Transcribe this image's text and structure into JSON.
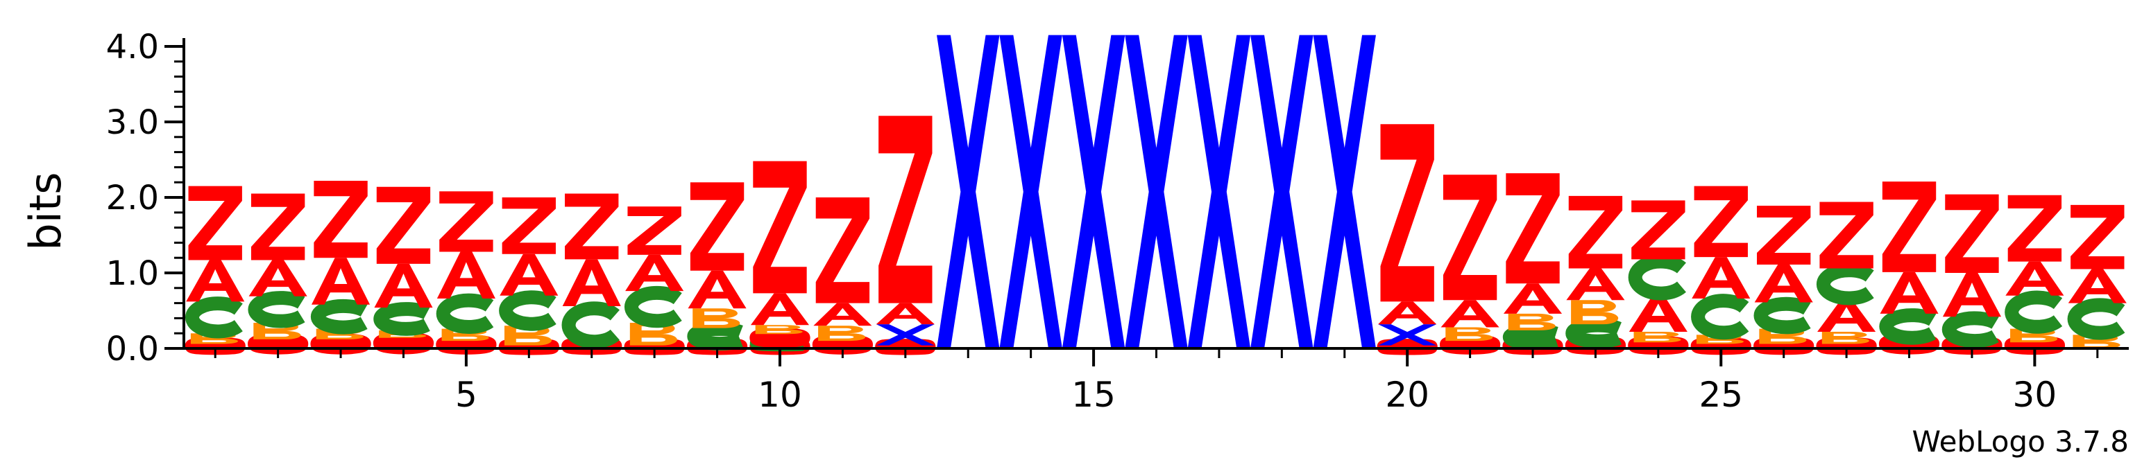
{
  "chart_data": {
    "type": "sequence-logo",
    "title": "",
    "ylabel": "bits",
    "xlabel": "",
    "ylim": [
      0,
      4.0
    ],
    "yticks": [
      "0.0",
      "1.0",
      "2.0",
      "3.0",
      "4.0"
    ],
    "xticks": [
      5,
      10,
      15,
      20,
      25,
      30
    ],
    "credit": "WebLogo 3.7.8",
    "letter_colors": {
      "Z": "#ff0000",
      "A": "#ff0000",
      "C": "#228b22",
      "B": "#ff8c00",
      "O": "#ff0000",
      "X": "#0000ff"
    },
    "positions": [
      {
        "pos": 1,
        "stack": [
          [
            "O",
            0.06
          ],
          [
            "B",
            0.14
          ],
          [
            "C",
            0.42
          ],
          [
            "A",
            0.55
          ],
          [
            "Z",
            0.98
          ]
        ]
      },
      {
        "pos": 2,
        "stack": [
          [
            "O",
            0.12
          ],
          [
            "B",
            0.22
          ],
          [
            "C",
            0.35
          ],
          [
            "A",
            0.48
          ],
          [
            "Z",
            0.88
          ]
        ]
      },
      {
        "pos": 3,
        "stack": [
          [
            "O",
            0.12
          ],
          [
            "B",
            0.14
          ],
          [
            "C",
            0.32
          ],
          [
            "A",
            0.62
          ],
          [
            "Z",
            1.02
          ]
        ]
      },
      {
        "pos": 4,
        "stack": [
          [
            "O",
            0.14
          ],
          [
            "B",
            0.1
          ],
          [
            "C",
            0.3
          ],
          [
            "A",
            0.58
          ],
          [
            "Z",
            1.02
          ]
        ]
      },
      {
        "pos": 5,
        "stack": [
          [
            "O",
            0.1
          ],
          [
            "B",
            0.16
          ],
          [
            "C",
            0.4
          ],
          [
            "A",
            0.62
          ],
          [
            "Z",
            0.8
          ]
        ]
      },
      {
        "pos": 6,
        "stack": [
          [
            "O",
            0.04
          ],
          [
            "B",
            0.26
          ],
          [
            "C",
            0.4
          ],
          [
            "A",
            0.55
          ],
          [
            "Z",
            0.75
          ]
        ]
      },
      {
        "pos": 7,
        "stack": [
          [
            "O",
            0.06
          ],
          [
            "C",
            0.5
          ],
          [
            "A",
            0.62
          ],
          [
            "Z",
            0.87
          ]
        ]
      },
      {
        "pos": 8,
        "stack": [
          [
            "O",
            0.04
          ],
          [
            "B",
            0.3
          ],
          [
            "C",
            0.42
          ],
          [
            "A",
            0.48
          ],
          [
            "Z",
            0.64
          ]
        ]
      },
      {
        "pos": 9,
        "stack": [
          [
            "O",
            0.05
          ],
          [
            "C",
            0.22
          ],
          [
            "B",
            0.26
          ],
          [
            "A",
            0.5
          ],
          [
            "Z",
            1.17
          ]
        ]
      },
      {
        "pos": 10,
        "stack": [
          [
            "O",
            0.05
          ],
          [
            "C",
            0.04
          ],
          [
            "O",
            0.1
          ],
          [
            "B",
            0.12
          ],
          [
            "A",
            0.42
          ],
          [
            "Z",
            1.75
          ]
        ]
      },
      {
        "pos": 11,
        "stack": [
          [
            "O",
            0.1
          ],
          [
            "B",
            0.2
          ],
          [
            "A",
            0.3
          ],
          [
            "Z",
            1.4
          ]
        ]
      },
      {
        "pos": 12,
        "stack": [
          [
            "O",
            0.04
          ],
          [
            "X",
            0.28
          ],
          [
            "A",
            0.28
          ],
          [
            "Z",
            2.48
          ]
        ]
      },
      {
        "pos": 13,
        "stack": [
          [
            "X",
            4.15
          ]
        ]
      },
      {
        "pos": 14,
        "stack": [
          [
            "X",
            4.15
          ]
        ]
      },
      {
        "pos": 15,
        "stack": [
          [
            "X",
            4.15
          ]
        ]
      },
      {
        "pos": 16,
        "stack": [
          [
            "X",
            4.15
          ]
        ]
      },
      {
        "pos": 17,
        "stack": [
          [
            "X",
            4.15
          ]
        ]
      },
      {
        "pos": 18,
        "stack": [
          [
            "X",
            4.15
          ]
        ]
      },
      {
        "pos": 19,
        "stack": [
          [
            "X",
            4.15
          ]
        ]
      },
      {
        "pos": 20,
        "stack": [
          [
            "O",
            0.04
          ],
          [
            "X",
            0.28
          ],
          [
            "A",
            0.3
          ],
          [
            "Z",
            2.35
          ]
        ]
      },
      {
        "pos": 21,
        "stack": [
          [
            "O",
            0.1
          ],
          [
            "B",
            0.18
          ],
          [
            "A",
            0.36
          ],
          [
            "Z",
            1.66
          ]
        ]
      },
      {
        "pos": 22,
        "stack": [
          [
            "O",
            0.06
          ],
          [
            "C",
            0.18
          ],
          [
            "B",
            0.22
          ],
          [
            "A",
            0.4
          ],
          [
            "Z",
            1.46
          ]
        ]
      },
      {
        "pos": 23,
        "stack": [
          [
            "O",
            0.08
          ],
          [
            "C",
            0.24
          ],
          [
            "B",
            0.32
          ],
          [
            "A",
            0.42
          ],
          [
            "Z",
            0.96
          ]
        ]
      },
      {
        "pos": 24,
        "stack": [
          [
            "O",
            0.08
          ],
          [
            "B",
            0.14
          ],
          [
            "A",
            0.48
          ],
          [
            "C",
            0.48
          ],
          [
            "Z",
            0.78
          ]
        ]
      },
      {
        "pos": 25,
        "stack": [
          [
            "O",
            0.06
          ],
          [
            "B",
            0.12
          ],
          [
            "C",
            0.48
          ],
          [
            "A",
            0.55
          ],
          [
            "Z",
            0.94
          ]
        ]
      },
      {
        "pos": 26,
        "stack": [
          [
            "O",
            0.06
          ],
          [
            "B",
            0.2
          ],
          [
            "C",
            0.35
          ],
          [
            "A",
            0.5
          ],
          [
            "Z",
            0.78
          ]
        ]
      },
      {
        "pos": 27,
        "stack": [
          [
            "O",
            0.06
          ],
          [
            "B",
            0.16
          ],
          [
            "A",
            0.42
          ],
          [
            "C",
            0.42
          ],
          [
            "Z",
            0.88
          ]
        ]
      },
      {
        "pos": 28,
        "stack": [
          [
            "O",
            0.12
          ],
          [
            "C",
            0.34
          ],
          [
            "A",
            0.55
          ],
          [
            "Z",
            1.2
          ]
        ]
      },
      {
        "pos": 29,
        "stack": [
          [
            "O",
            0.08
          ],
          [
            "C",
            0.34
          ],
          [
            "A",
            0.58
          ],
          [
            "Z",
            1.04
          ]
        ]
      },
      {
        "pos": 30,
        "stack": [
          [
            "O",
            0.08
          ],
          [
            "B",
            0.18
          ],
          [
            "C",
            0.44
          ],
          [
            "A",
            0.45
          ],
          [
            "Z",
            0.88
          ]
        ]
      },
      {
        "pos": 31,
        "stack": [
          [
            "B",
            0.18
          ],
          [
            "C",
            0.42
          ],
          [
            "A",
            0.45
          ],
          [
            "Z",
            0.85
          ]
        ]
      }
    ]
  }
}
